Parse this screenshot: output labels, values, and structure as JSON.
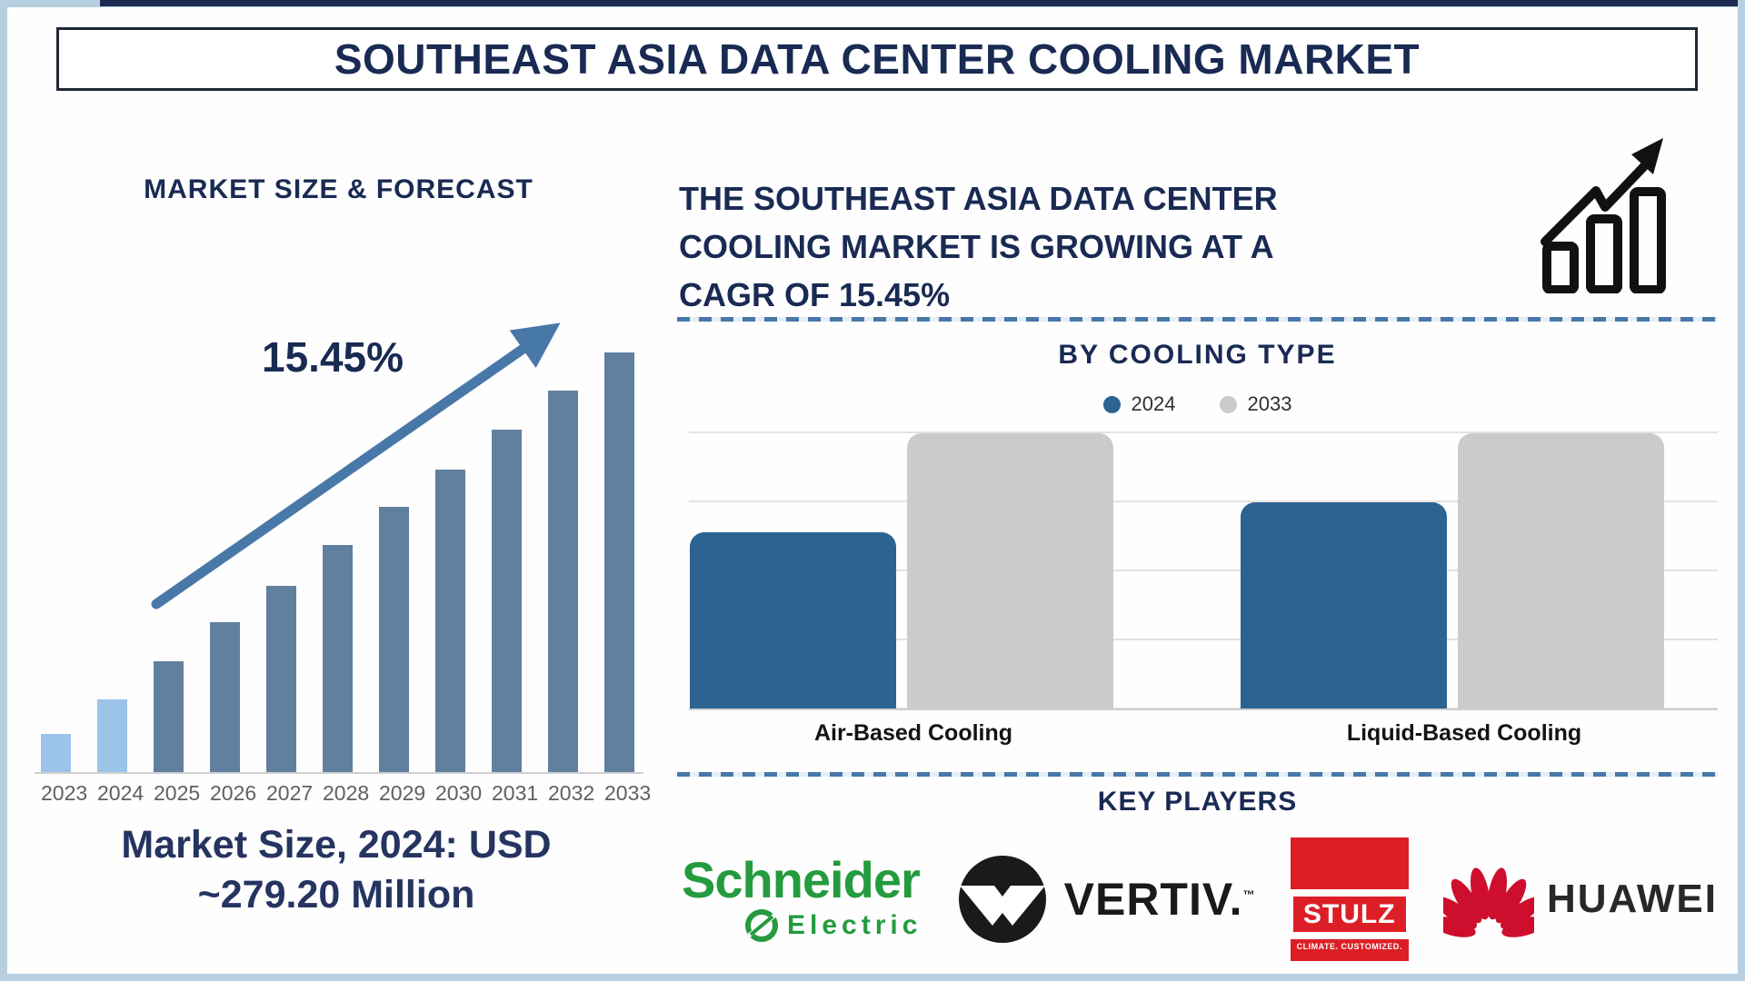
{
  "title": "SOUTHEAST ASIA DATA CENTER COOLING MARKET",
  "left_panel": {
    "chart_title": "MARKET SIZE & FORECAST",
    "cagr_label": "15.45%",
    "market_size_line1": "Market Size, 2024: USD",
    "market_size_line2": "~279.20 Million"
  },
  "right_panel": {
    "headline_lines": [
      "THE SOUTHEAST ASIA DATA CENTER",
      "COOLING MARKET IS GROWING AT A",
      "CAGR OF 15.45%"
    ],
    "cooling_chart_title": "BY COOLING TYPE",
    "key_players_title": "KEY PLAYERS"
  },
  "logos": {
    "schneider": {
      "line1": "Schneider",
      "line2": "Electric",
      "color": "#249b3e"
    },
    "vertiv": {
      "text": "VERTIV.",
      "tm": "™",
      "color": "#1a1a1a"
    },
    "stulz": {
      "text": "STULZ",
      "tagline": "CLIMATE. CUSTOMIZED.",
      "color": "#dc1f26"
    },
    "huawei": {
      "text": "HUAWEI",
      "color": "#ce0e2d"
    }
  },
  "colors": {
    "navy_text": "#192a53",
    "steel_blue_accent": "#4878a8",
    "left_bars_light": "#9cc3e8",
    "left_bars_dark": "#61809f",
    "right_bar_2024": "#2d6390",
    "right_bar_2033": "#cbcbcb",
    "outer_frame": "#b7cfe0"
  },
  "chart_data": [
    {
      "type": "bar",
      "title": "MARKET SIZE & FORECAST",
      "categories": [
        "2023",
        "2024",
        "2025",
        "2026",
        "2027",
        "2028",
        "2029",
        "2030",
        "2031",
        "2032",
        "2033"
      ],
      "values_relative_pct": [
        9.1,
        17.3,
        26.4,
        35.7,
        44.4,
        54.1,
        63.2,
        72.1,
        81.6,
        90.9,
        100
      ],
      "ylabel": "",
      "xlabel": "",
      "axis_values_shown": false,
      "annotation": "15.45%",
      "trend_arrow": true,
      "known_value_label": "Market Size, 2024: USD ~279.20 Million",
      "bar_color_2023_2024": "#9cc3e8",
      "bar_color_2025_2033": "#61809f"
    },
    {
      "type": "bar",
      "title": "BY COOLING TYPE",
      "categories": [
        "Air-Based Cooling",
        "Liquid-Based Cooling"
      ],
      "series": [
        {
          "name": "2024",
          "color": "#2d6390",
          "values_relative_pct": [
            64,
            75
          ]
        },
        {
          "name": "2033",
          "color": "#cbcbcb",
          "values_relative_pct": [
            100,
            100
          ]
        }
      ],
      "legend_position": "top",
      "gridlines": true,
      "axis_values_shown": false
    }
  ]
}
